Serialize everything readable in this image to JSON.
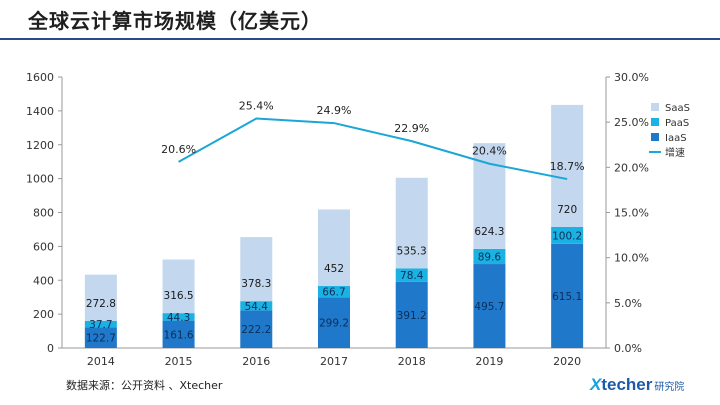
{
  "header": {
    "title": "全球云计算市场规模（亿美元）"
  },
  "source": "数据来源：公开资料 、Xtecher",
  "logo": {
    "mark": "X",
    "name": "techer",
    "suffix": "研究院"
  },
  "colors": {
    "saas": "#c3d7ee",
    "paas": "#1ab2e3",
    "iaas": "#1f78c9",
    "growth": "#1aa6d6",
    "title_rule": "#2b4a8c"
  },
  "chart_data": {
    "type": "bar",
    "stacked": true,
    "categories": [
      "2014",
      "2015",
      "2016",
      "2017",
      "2018",
      "2019",
      "2020"
    ],
    "series": [
      {
        "name": "IaaS",
        "values": [
          122.7,
          161.6,
          222.2,
          299.2,
          391.2,
          495.7,
          615.1
        ]
      },
      {
        "name": "PaaS",
        "values": [
          37.7,
          44.3,
          54.4,
          66.7,
          78.4,
          89.6,
          100.2
        ]
      },
      {
        "name": "SaaS",
        "values": [
          272.8,
          316.5,
          378.3,
          452,
          535.3,
          624.3,
          720
        ]
      }
    ],
    "line_series": {
      "name": "增速",
      "axis": "right",
      "categories": [
        "2015",
        "2016",
        "2017",
        "2018",
        "2019",
        "2020"
      ],
      "values": [
        20.6,
        25.4,
        24.9,
        22.9,
        20.4,
        18.7
      ]
    },
    "left_axis": {
      "ylim": [
        0,
        1600
      ],
      "ticks": [
        "0",
        "200",
        "400",
        "600",
        "800",
        "1000",
        "1200",
        "1400",
        "1600"
      ]
    },
    "right_axis": {
      "ylim": [
        0,
        30
      ],
      "ticks": [
        "0.0%",
        "5.0%",
        "10.0%",
        "15.0%",
        "20.0%",
        "25.0%",
        "30.0%"
      ]
    },
    "legend": [
      "SaaS",
      "PaaS",
      "IaaS",
      "增速"
    ],
    "legend_position": "right",
    "grid": false
  }
}
